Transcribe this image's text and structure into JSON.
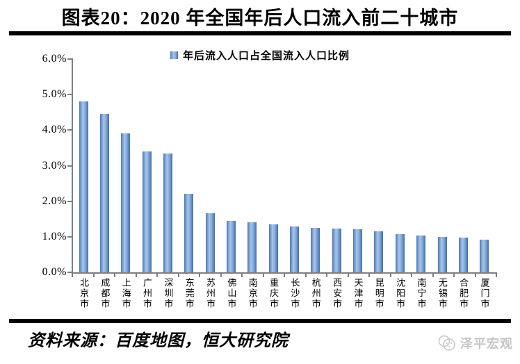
{
  "header": {
    "title": "图表20：2020 年全国年后人口流入前二十城市"
  },
  "legend": {
    "label": "年后流入人口占全国流入人口比例",
    "marker_color": "#4f81bd"
  },
  "chart_data": {
    "type": "bar",
    "title": "2020 年全国年后人口流入前二十城市",
    "series_name": "年后流入人口占全国流入人口比例",
    "categories": [
      "北京市",
      "成都市",
      "上海市",
      "广州市",
      "深圳市",
      "东莞市",
      "苏州市",
      "佛山市",
      "南京市",
      "重庆市",
      "长沙市",
      "杭州市",
      "西安市",
      "天津市",
      "昆明市",
      "沈阳市",
      "南宁市",
      "无锡市",
      "合肥市",
      "厦门市"
    ],
    "values": [
      4.8,
      4.45,
      3.9,
      3.4,
      3.35,
      2.2,
      1.66,
      1.44,
      1.4,
      1.35,
      1.29,
      1.26,
      1.24,
      1.21,
      1.15,
      1.07,
      1.03,
      0.99,
      0.97,
      0.92
    ],
    "unit": "%",
    "xlabel": "",
    "ylabel": "",
    "ylim": [
      0,
      6
    ],
    "ytick_step": 1,
    "ytick_labels": [
      "0.0%",
      "1.0%",
      "2.0%",
      "3.0%",
      "4.0%",
      "5.0%",
      "6.0%"
    ],
    "grid": false,
    "legend_position": "top",
    "bar_color": "#4f81bd",
    "axis_color": "#7f7f7f"
  },
  "footer": {
    "source": "资料来源：百度地图，恒大研究院",
    "watermark": "泽平宏观"
  }
}
